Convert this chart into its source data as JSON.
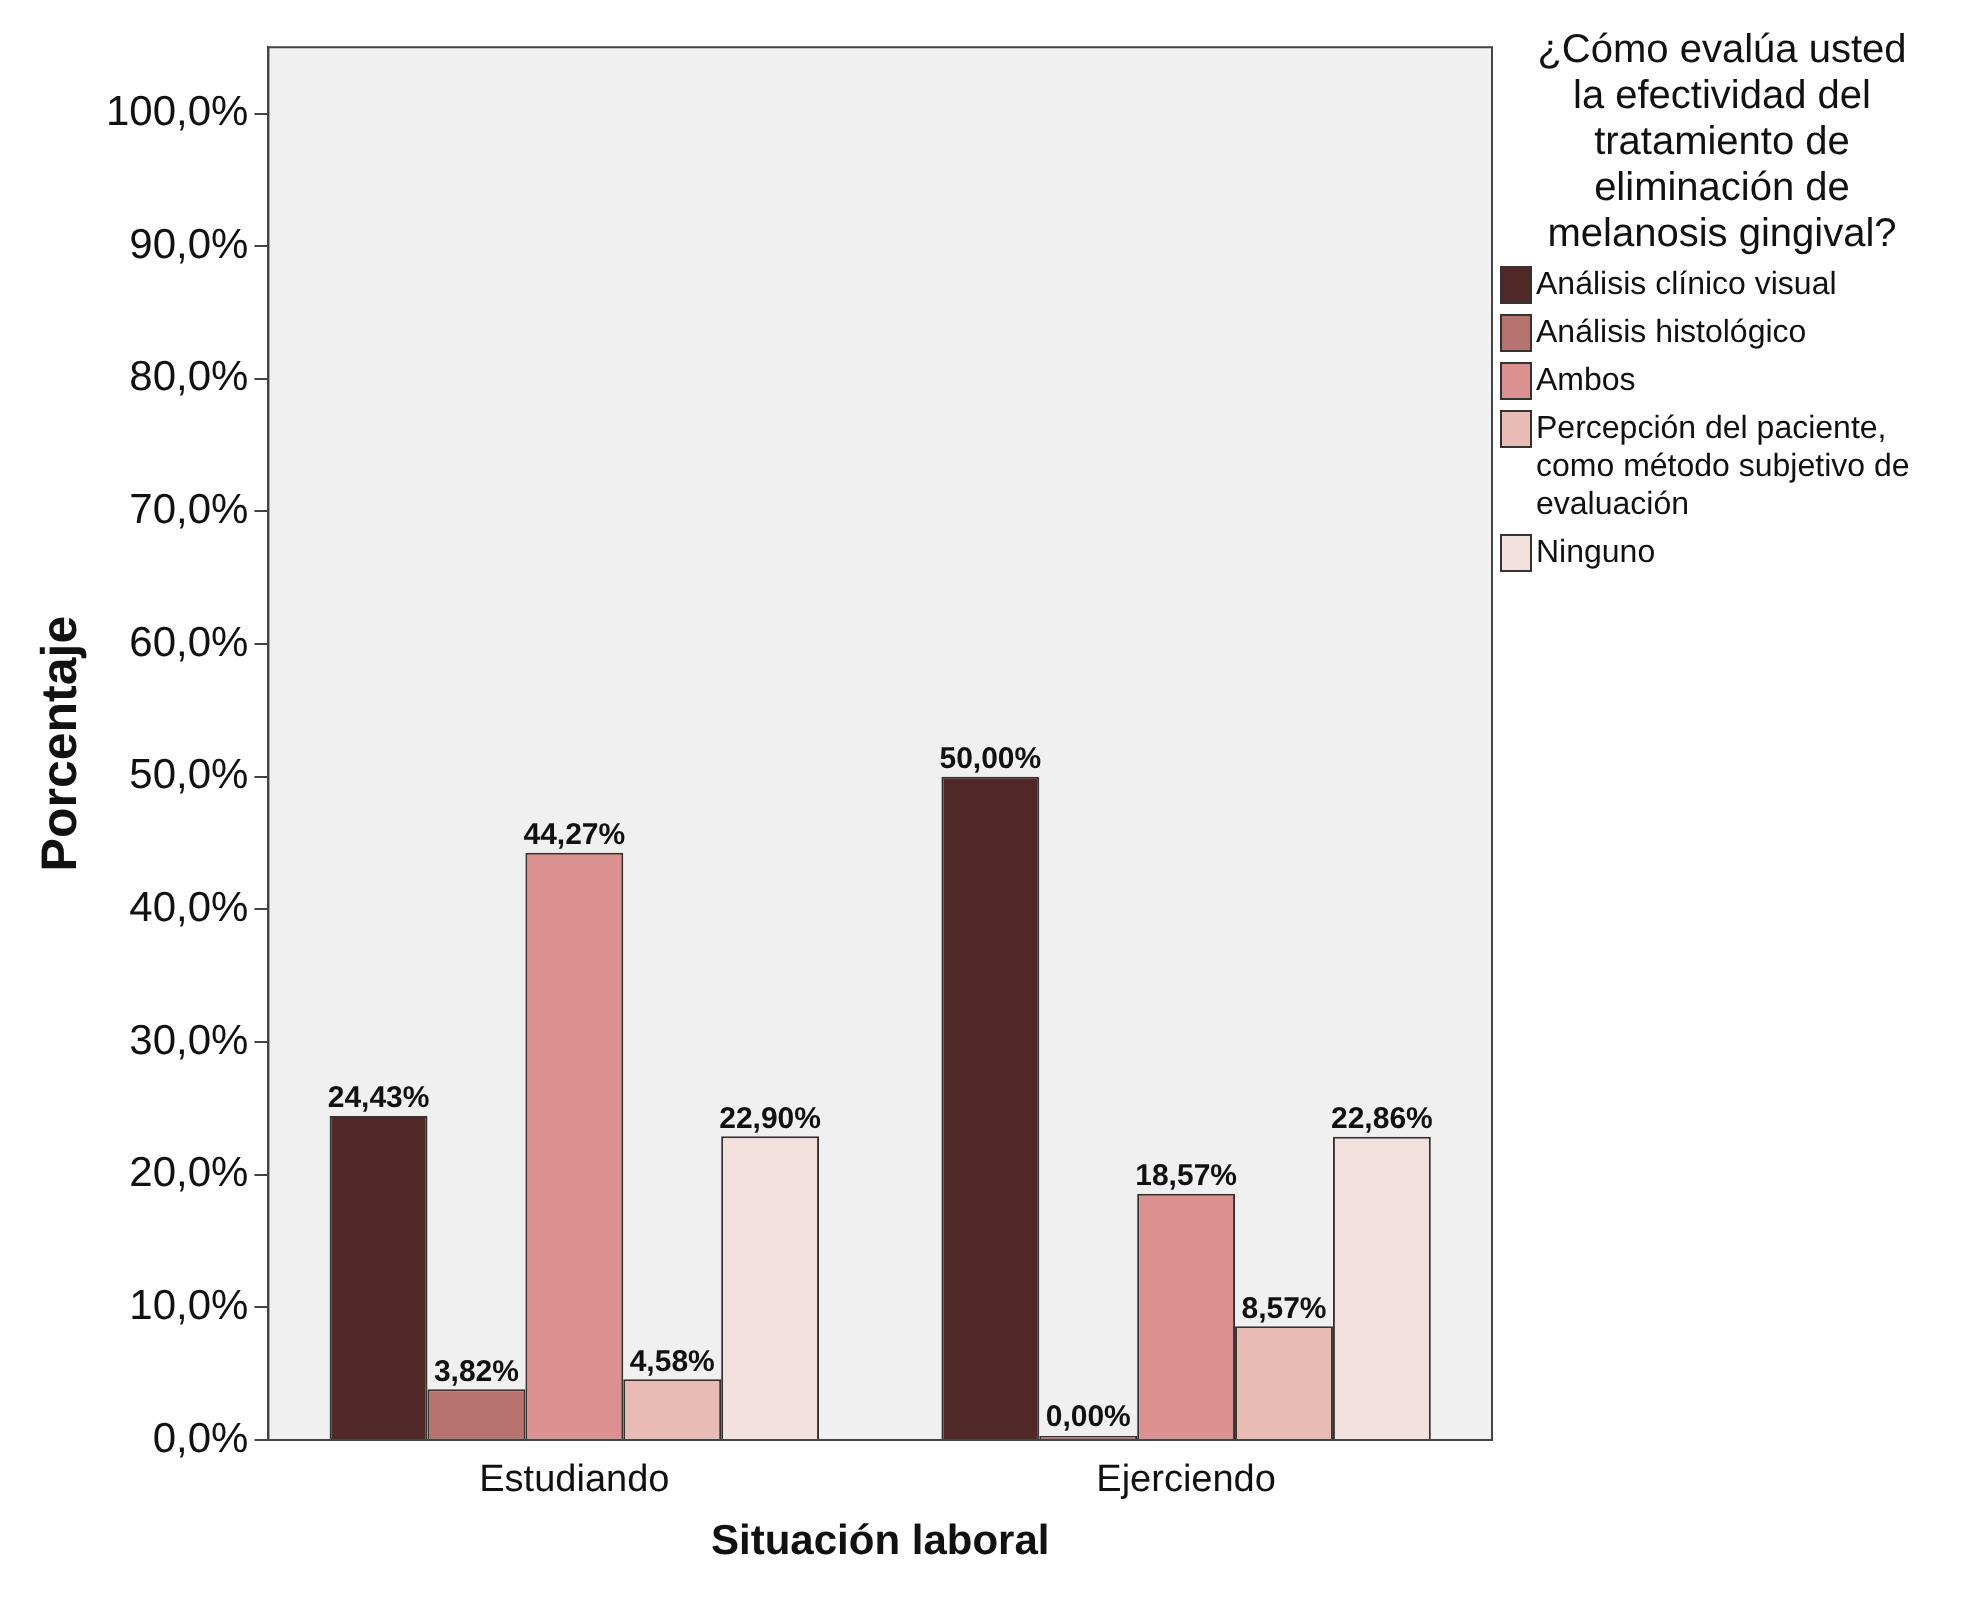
{
  "chart_data": {
    "type": "bar",
    "xlabel": "Situación laboral",
    "ylabel": "Porcentaje",
    "legend_title": "¿Cómo evalúa usted la efectividad del tratamiento de eliminación de melanosis gingival?",
    "legend": "right",
    "grid": false,
    "categories": [
      "Estudiando",
      "Ejerciendo"
    ],
    "ylim": [
      0,
      105
    ],
    "yticks": [
      {
        "value": 0,
        "label": "0,0%"
      },
      {
        "value": 10,
        "label": "10,0%"
      },
      {
        "value": 20,
        "label": "20,0%"
      },
      {
        "value": 30,
        "label": "30,0%"
      },
      {
        "value": 40,
        "label": "40,0%"
      },
      {
        "value": 50,
        "label": "50,0%"
      },
      {
        "value": 60,
        "label": "60,0%"
      },
      {
        "value": 70,
        "label": "70,0%"
      },
      {
        "value": 80,
        "label": "80,0%"
      },
      {
        "value": 90,
        "label": "90,0%"
      },
      {
        "value": 100,
        "label": "100,0%"
      }
    ],
    "series": [
      {
        "name": "Análisis clínico visual",
        "color": "#512828",
        "values": [
          24.43,
          50.0
        ],
        "value_labels": [
          "24,43%",
          "50,00%"
        ]
      },
      {
        "name": "Análisis histológico",
        "color": "#b7746e",
        "values": [
          3.82,
          0.0
        ],
        "value_labels": [
          "3,82%",
          "0,00%"
        ]
      },
      {
        "name": "Ambos",
        "color": "#da9190",
        "values": [
          44.27,
          18.57
        ],
        "value_labels": [
          "44,27%",
          "18,57%"
        ]
      },
      {
        "name": "Percepción del paciente, como método subjetivo de evaluación",
        "color": "#e8bcb5",
        "values": [
          4.58,
          8.57
        ],
        "value_labels": [
          "4,58%",
          "8,57%"
        ]
      },
      {
        "name": "Ninguno",
        "color": "#f3e1de",
        "values": [
          22.9,
          22.86
        ],
        "value_labels": [
          "22,90%",
          "22,86%"
        ]
      }
    ]
  }
}
